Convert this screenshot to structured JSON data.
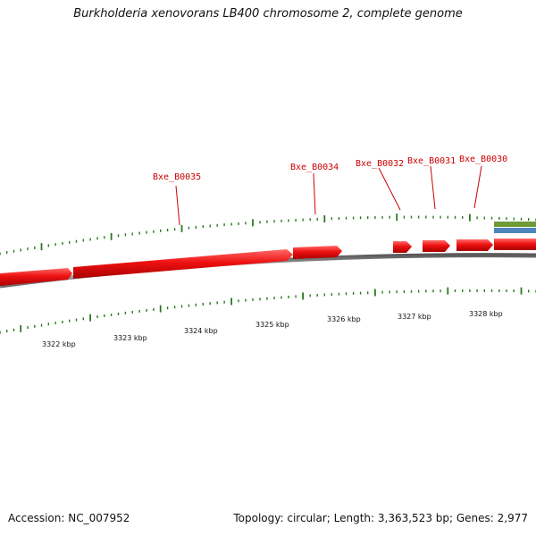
{
  "title": "Burkholderia xenovorans LB400 chromosome 2, complete genome",
  "footer": {
    "accession": "Accession: NC_007952",
    "summary": "Topology: circular; Length: 3,363,523 bp; Genes: 2,977"
  },
  "colors": {
    "gene": "#ee1111",
    "tick": "#2a7a1f",
    "label": "#cc0000",
    "backbone": "#808080",
    "feature_green": "#6f9a35",
    "feature_blue": "#4f86bf"
  },
  "gene_labels": [
    "Bxe_B0035",
    "Bxe_B0034",
    "Bxe_B0032",
    "Bxe_B0031",
    "Bxe_B0030"
  ],
  "kbp_labels": [
    "3322 kbp",
    "3323 kbp",
    "3324 kbp",
    "3325 kbp",
    "3326 kbp",
    "3327 kbp",
    "3328 kbp"
  ]
}
